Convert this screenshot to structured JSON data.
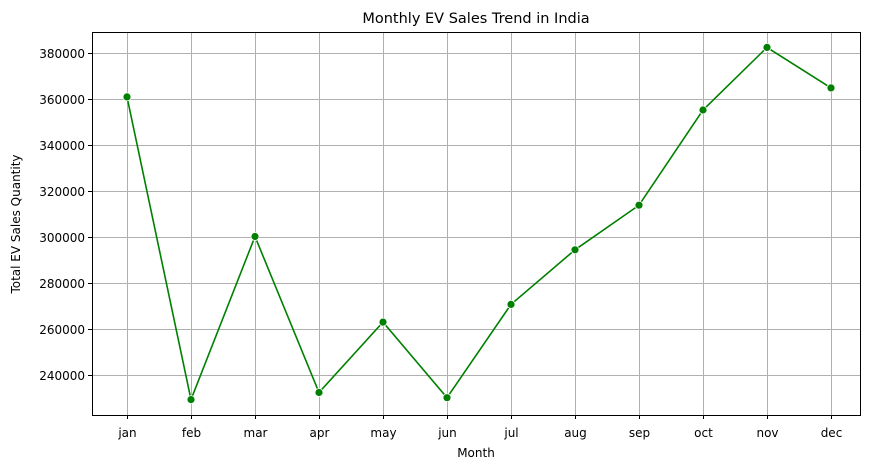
{
  "chart_data": {
    "type": "line",
    "title": "Monthly EV Sales Trend in India",
    "xlabel": "Month",
    "ylabel": "Total EV Sales Quantity",
    "categories": [
      "jan",
      "feb",
      "mar",
      "apr",
      "may",
      "jun",
      "jul",
      "aug",
      "sep",
      "oct",
      "nov",
      "dec"
    ],
    "series": [
      {
        "values": [
          360800,
          229200,
          300100,
          232300,
          262900,
          230000,
          270600,
          294300,
          313700,
          355100,
          382300,
          364700
        ],
        "color": "#008000",
        "marker": "circle"
      }
    ],
    "yticks": [
      240000,
      260000,
      280000,
      300000,
      320000,
      340000,
      360000,
      380000
    ],
    "ylim": [
      222500,
      389000
    ],
    "grid": true,
    "legend": "none"
  }
}
